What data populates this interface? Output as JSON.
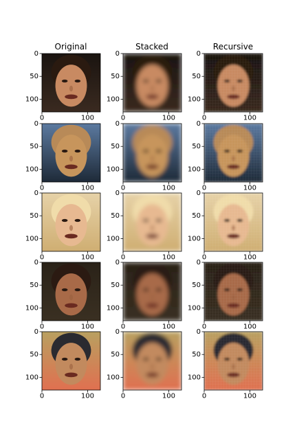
{
  "figure": {
    "columns": [
      {
        "title": "Original"
      },
      {
        "title": "Stacked"
      },
      {
        "title": "Recursive"
      }
    ],
    "x_ticks": [
      "0",
      "100"
    ],
    "y_ticks": [
      "0",
      "50",
      "100"
    ],
    "rows": [
      {
        "colors": {
          "bg1": "#1a1410",
          "bg2": "#3a2a20",
          "skin": "#c88a62",
          "hair": "#2a1a10"
        }
      },
      {
        "colors": {
          "bg1": "#5c7aa0",
          "bg2": "#1e2a38",
          "skin": "#c7955c",
          "hair": "#b88a58"
        }
      },
      {
        "colors": {
          "bg1": "#e6d2a8",
          "bg2": "#cfae72",
          "skin": "#e7b991",
          "hair": "#f0dcaa"
        }
      },
      {
        "colors": {
          "bg1": "#2a2218",
          "bg2": "#3a3022",
          "skin": "#a86a48",
          "hair": "#2b1a12"
        }
      },
      {
        "colors": {
          "bg1": "#b8a060",
          "bg2": "#e07050",
          "skin": "#c28a5e",
          "hair": "#2a2a30"
        }
      }
    ]
  }
}
